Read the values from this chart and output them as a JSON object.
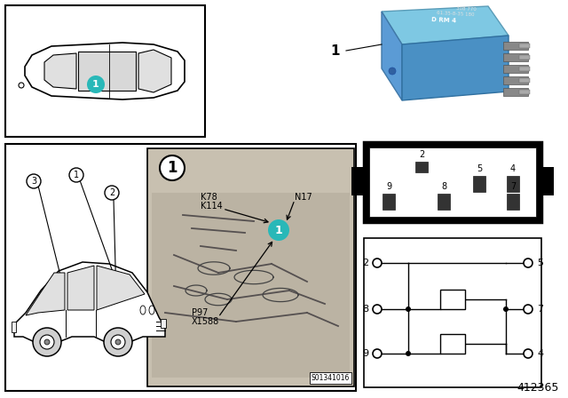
{
  "part_number": "412365",
  "background_color": "#ffffff",
  "teal_color": "#29b8b8",
  "relay_blue_top": "#6baed6",
  "relay_blue_front": "#4292c6",
  "relay_blue_right": "#2171b5",
  "pin_labels_top": [
    "2",
    "5",
    "4"
  ],
  "pin_labels_bottom": [
    "9",
    "8",
    "7"
  ],
  "circuit_left_pins": [
    "2",
    "8",
    "9"
  ],
  "circuit_right_pins": [
    "5",
    "7",
    "4"
  ],
  "engine_text_labels": [
    "K78",
    "K114",
    "N17",
    "P97",
    "X1588"
  ],
  "image_code": "S01341016"
}
